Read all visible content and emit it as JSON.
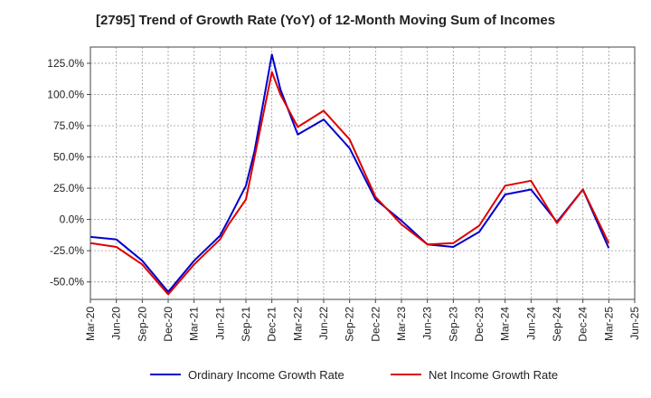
{
  "chart_data": {
    "type": "line",
    "title": "[2795]  Trend of Growth Rate (YoY) of 12-Month Moving Sum of Incomes",
    "xlabel": "",
    "ylabel": "",
    "x_ticks": [
      "Mar-20",
      "Jun-20",
      "Sep-20",
      "Dec-20",
      "Mar-21",
      "Jun-21",
      "Sep-21",
      "Dec-21",
      "Mar-22",
      "Jun-22",
      "Sep-22",
      "Dec-22",
      "Mar-23",
      "Jun-23",
      "Sep-23",
      "Dec-23",
      "Mar-24",
      "Jun-24",
      "Sep-24",
      "Dec-24",
      "Mar-25",
      "Jun-25"
    ],
    "y_ticks": [
      125,
      100,
      75,
      50,
      25,
      0,
      -25,
      -50
    ],
    "y_tick_labels": [
      "125.0%",
      "100.0%",
      "75.0%",
      "50.0%",
      "25.0%",
      "0.0%",
      "-25.0%",
      "-50.0%"
    ],
    "ylim": [
      -64,
      138
    ],
    "grid": true,
    "legend_position": "bottom-center",
    "x": [
      "2020-03",
      "2020-06",
      "2020-09",
      "2020-12",
      "2021-03",
      "2021-06",
      "2021-07",
      "2021-09",
      "2021-10",
      "2021-12",
      "2022-01",
      "2022-03",
      "2022-06",
      "2022-09",
      "2022-12",
      "2023-03",
      "2023-06",
      "2023-09",
      "2023-12",
      "2024-03",
      "2024-06",
      "2024-09",
      "2024-12",
      "2025-03"
    ],
    "series": [
      {
        "name": "Ordinary Income Growth Rate",
        "color": "#0000cc",
        "values": [
          -14,
          -16,
          -33,
          -58,
          -33,
          -13,
          0,
          27,
          55,
          132,
          104,
          68,
          80,
          57,
          16,
          -1,
          -20,
          -22,
          -10,
          20,
          24,
          -2,
          24,
          -23
        ]
      },
      {
        "name": "Net Income Growth Rate",
        "color": "#dd0000",
        "values": [
          -19,
          -22,
          -36,
          -60,
          -36,
          -16,
          -4,
          16,
          50,
          118,
          100,
          74,
          87,
          64,
          18,
          -4,
          -20,
          -19,
          -5,
          27,
          31,
          -3,
          24,
          -19
        ]
      }
    ]
  }
}
